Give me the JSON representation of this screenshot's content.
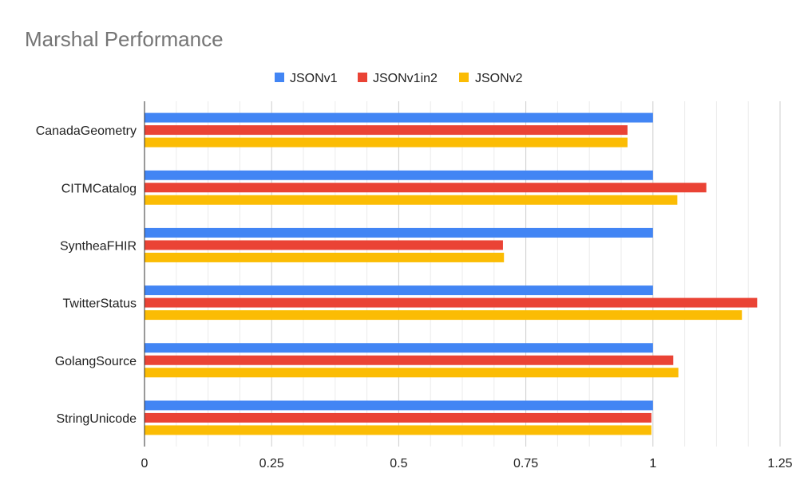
{
  "chart_data": {
    "type": "bar",
    "orientation": "horizontal",
    "title": "Marshal Performance",
    "xlabel": "",
    "ylabel": "",
    "xlim": [
      0,
      1.25
    ],
    "xticks": [
      0,
      0.25,
      0.5,
      0.75,
      1,
      1.25
    ],
    "xtick_labels": [
      "0",
      "0.25",
      "0.5",
      "0.75",
      "1",
      "1.25"
    ],
    "minor_grid_step": 0.0625,
    "grid": true,
    "legend_position": "top-center",
    "categories": [
      "CanadaGeometry",
      "CITMCatalog",
      "SyntheaFHIR",
      "TwitterStatus",
      "GolangSource",
      "StringUnicode"
    ],
    "series": [
      {
        "name": "JSONv1",
        "color": "#4285f4",
        "values": [
          1,
          1,
          1,
          1,
          1,
          1
        ]
      },
      {
        "name": "JSONv1in2",
        "color": "#ea4335",
        "values": [
          0.95,
          1.105,
          0.705,
          1.205,
          1.04,
          0.997
        ]
      },
      {
        "name": "JSONv2",
        "color": "#fbbc04",
        "values": [
          0.95,
          1.048,
          0.707,
          1.175,
          1.05,
          0.997
        ]
      }
    ]
  }
}
